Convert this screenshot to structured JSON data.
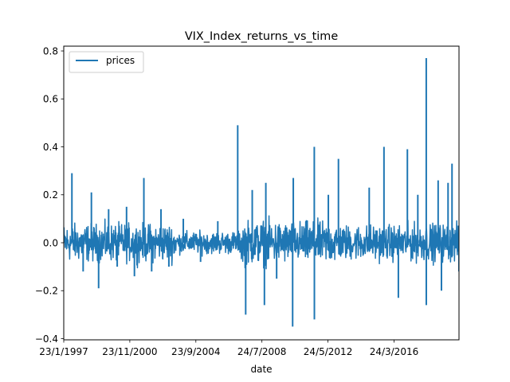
{
  "chart_data": {
    "type": "line",
    "title": "VIX_Index_returns_vs_time",
    "xlabel": "date",
    "ylabel": "",
    "x_tick_labels": [
      "23/1/1997",
      "23/11/2000",
      "23/9/2004",
      "24/7/2008",
      "24/5/2012",
      "24/3/2016"
    ],
    "y_ticks": [
      -0.4,
      -0.2,
      0.0,
      0.2,
      0.4,
      0.6,
      0.8
    ],
    "y_tick_labels": [
      "−0.4",
      "−0.2",
      "0.0",
      "0.2",
      "0.4",
      "0.6",
      "0.8"
    ],
    "xlim": [
      "1997-01-23",
      "2019-12-31"
    ],
    "ylim": [
      -0.405,
      0.82
    ],
    "grid": false,
    "legend": {
      "position": "top-left",
      "entries": [
        "prices"
      ]
    },
    "color": "#1f77b4",
    "series": [
      {
        "name": "prices",
        "x": [
          "1997-01-23",
          "1997-07-15",
          "1998-03-10",
          "1998-09-01",
          "1999-02-01",
          "1999-09-01",
          "2000-03-01",
          "2000-09-15",
          "2001-03-01",
          "2001-09-17",
          "2002-03-01",
          "2002-09-15",
          "2003-03-01",
          "2004-01-01",
          "2005-01-01",
          "2006-01-01",
          "2007-02-27",
          "2007-08-15",
          "2008-01-01",
          "2008-09-15",
          "2008-10-15",
          "2009-06-01",
          "2010-05-06",
          "2010-05-20",
          "2011-08-08",
          "2011-08-10",
          "2012-06-01",
          "2013-01-01",
          "2014-10-15",
          "2015-08-24",
          "2016-06-24",
          "2017-01-01",
          "2017-08-10",
          "2018-02-05",
          "2018-02-06",
          "2018-10-15",
          "2018-12-24",
          "2019-05-13",
          "2019-08-05",
          "2019-12-31"
        ],
        "values": [
          0.06,
          0.29,
          -0.12,
          0.21,
          -0.19,
          0.14,
          -0.1,
          0.15,
          -0.14,
          0.27,
          -0.12,
          0.14,
          -0.1,
          0.1,
          -0.08,
          0.09,
          0.49,
          -0.3,
          0.22,
          -0.26,
          0.25,
          -0.15,
          -0.35,
          0.27,
          0.4,
          -0.32,
          0.2,
          0.35,
          0.23,
          0.4,
          -0.23,
          0.39,
          0.2,
          0.77,
          -0.26,
          0.26,
          -0.2,
          0.25,
          0.33,
          -0.12
        ]
      }
    ]
  }
}
